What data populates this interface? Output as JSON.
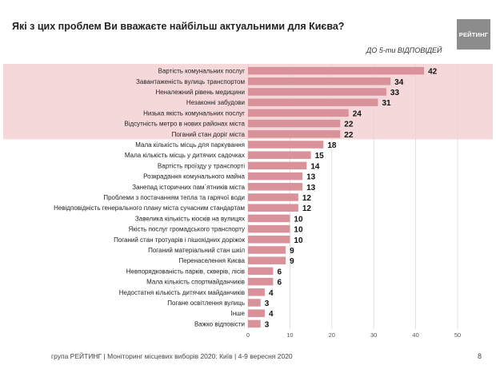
{
  "header": {
    "title": "Які з цих проблем Ви вважаєте найбільш актуальними для Києва?",
    "logo_text": "РЕЙТИНГ",
    "note": "ДО 5-ти ВІДПОВІДЕЙ"
  },
  "footer": {
    "source": "група РЕЙТИНГ | Моніторинг місцевих виборів 2020: Київ | 4-9 вересня 2020",
    "page": "8"
  },
  "colors": {
    "bar": "#d9919a",
    "highlight": "#f5d8da",
    "grid": "#d9d9d9"
  },
  "chart_data": {
    "type": "bar",
    "orientation": "horizontal",
    "title": "Які з цих проблем Ви вважаєте найбільш актуальними для Києва?",
    "xlabel": "",
    "ylabel": "",
    "xlim": [
      0,
      50
    ],
    "xticks": [
      0,
      10,
      20,
      30,
      40,
      50
    ],
    "grid": true,
    "highlighted_top": 7,
    "categories": [
      "Вартість комунальних послуг",
      "Завантаженість вулиць транспортом",
      "Неналежний рівень медицини",
      "Незаконні забудови",
      "Низька якість комунальних послуг",
      "Відсутність метро в нових районах міста",
      "Поганий стан доріг міста",
      "Мала кількість  місць для паркування",
      "Мала кількість місць у дитячих садочках",
      "Вартість проїзду у транспорті",
      "Розкрадання комунального майна",
      "Занепад історичних пам`ятників міста",
      "Проблеми  з постачанням тепла та гарячої води",
      "Невідповідність генерального плану міста сучасним стандартам",
      "Завелика кількість кіосків на вулицях",
      "Якість послуг громадського транспорту",
      "Поганий стан тротуарів і пішохідних доріжок",
      "Поганий матеріальний стан шкіл",
      "Перенаселення Києва",
      "Невпорядкованість парків, скверів, лісів",
      "Мала кількість спортмайданчиків",
      "Недостатня кількість дитячих майданчиків",
      "Погане освітлення вулиць",
      "Інше",
      "Важко відповісти"
    ],
    "values": [
      42,
      34,
      33,
      31,
      24,
      22,
      22,
      18,
      15,
      14,
      13,
      13,
      12,
      12,
      10,
      10,
      10,
      9,
      9,
      6,
      6,
      4,
      3,
      4,
      3
    ]
  }
}
